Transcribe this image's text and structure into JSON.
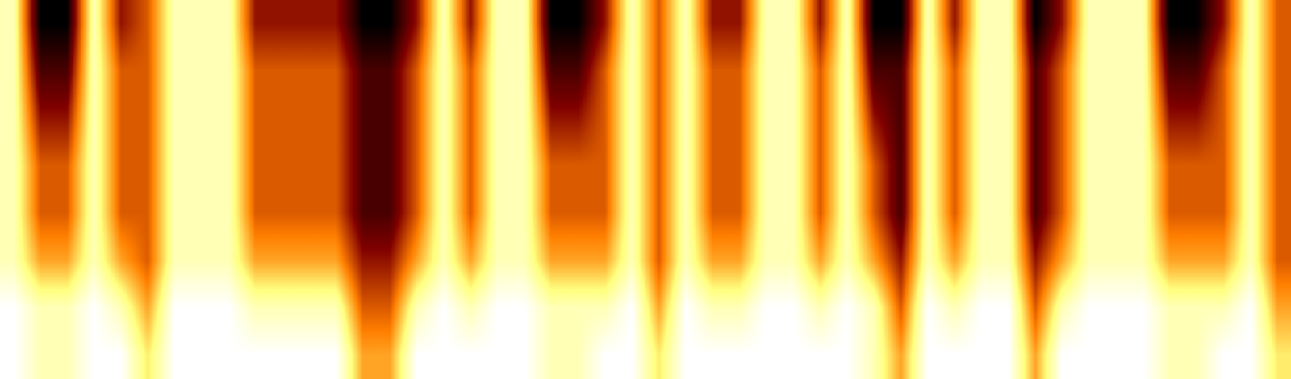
{
  "chart_data": {
    "type": "heatmap",
    "tick_labels": false,
    "cells": [
      [
        8,
        2,
        2,
        8,
        4,
        5,
        8,
        8,
        8,
        4,
        4,
        4,
        4,
        2,
        2,
        4,
        8,
        4,
        8,
        8,
        2,
        2,
        4,
        8,
        5,
        8,
        4,
        4,
        8,
        8,
        4,
        8,
        2,
        2,
        8,
        4,
        8,
        8,
        2,
        4,
        8,
        8,
        8,
        2,
        2,
        4,
        8,
        5
      ],
      [
        8,
        3,
        3,
        8,
        5,
        5,
        8,
        8,
        8,
        5,
        5,
        5,
        5,
        3,
        3,
        5,
        8,
        5,
        8,
        8,
        3,
        3,
        5,
        8,
        5,
        8,
        5,
        5,
        8,
        8,
        5,
        8,
        3,
        3,
        8,
        5,
        8,
        8,
        3,
        5,
        8,
        8,
        8,
        3,
        3,
        5,
        8,
        5
      ],
      [
        8,
        4,
        4,
        8,
        5,
        5,
        8,
        8,
        8,
        5,
        5,
        5,
        5,
        3,
        3,
        5,
        8,
        5,
        8,
        8,
        4,
        4,
        5,
        8,
        5,
        8,
        5,
        5,
        8,
        8,
        5,
        8,
        4,
        3,
        8,
        5,
        8,
        8,
        3,
        5,
        8,
        8,
        8,
        4,
        4,
        5,
        8,
        5
      ],
      [
        8,
        5,
        5,
        8,
        5,
        5,
        8,
        8,
        8,
        5,
        5,
        5,
        5,
        3,
        3,
        5,
        8,
        5,
        8,
        8,
        5,
        5,
        5,
        8,
        5,
        8,
        5,
        5,
        8,
        8,
        5,
        8,
        5,
        3,
        8,
        5,
        8,
        8,
        3,
        5,
        8,
        8,
        8,
        5,
        5,
        5,
        8,
        5
      ],
      [
        8,
        5,
        5,
        8,
        5,
        5,
        8,
        8,
        8,
        5,
        5,
        5,
        5,
        3,
        3,
        5,
        8,
        5,
        8,
        8,
        5,
        5,
        5,
        8,
        5,
        8,
        5,
        5,
        8,
        8,
        5,
        8,
        5,
        3,
        8,
        5,
        8,
        8,
        3,
        5,
        8,
        8,
        8,
        5,
        5,
        5,
        8,
        5
      ],
      [
        8,
        6,
        6,
        8,
        6,
        5,
        8,
        8,
        8,
        6,
        6,
        6,
        6,
        4,
        4,
        6,
        8,
        6,
        8,
        8,
        6,
        6,
        6,
        8,
        5,
        8,
        6,
        6,
        8,
        8,
        6,
        8,
        6,
        4,
        8,
        6,
        8,
        8,
        4,
        6,
        8,
        8,
        8,
        6,
        6,
        6,
        8,
        5
      ],
      [
        9,
        8,
        8,
        9,
        8,
        6,
        9,
        9,
        9,
        8,
        8,
        8,
        8,
        5,
        5,
        8,
        9,
        8,
        9,
        9,
        8,
        8,
        8,
        9,
        6,
        9,
        8,
        8,
        9,
        9,
        8,
        9,
        8,
        5,
        9,
        8,
        9,
        9,
        5,
        8,
        9,
        9,
        9,
        8,
        8,
        8,
        9,
        6
      ],
      [
        9,
        8,
        8,
        9,
        9,
        7,
        9,
        9,
        9,
        9,
        9,
        9,
        9,
        6,
        6,
        9,
        9,
        9,
        9,
        9,
        8,
        8,
        9,
        9,
        7,
        9,
        9,
        9,
        9,
        9,
        9,
        9,
        8,
        6,
        9,
        9,
        9,
        9,
        6,
        9,
        9,
        9,
        9,
        8,
        8,
        9,
        9,
        7
      ]
    ]
  }
}
